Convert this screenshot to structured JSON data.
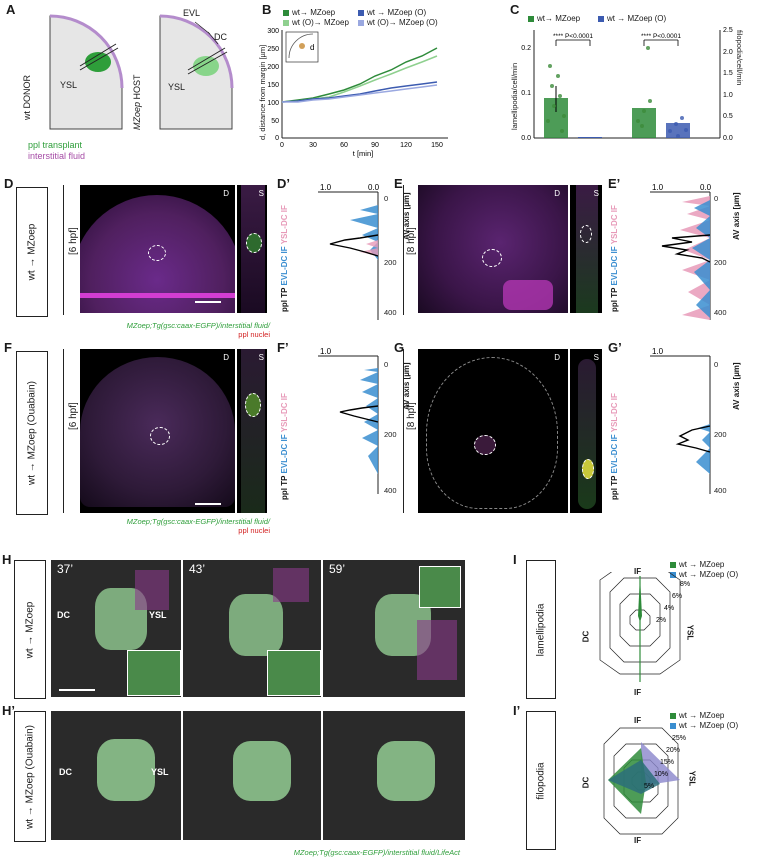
{
  "panels": {
    "A": "A",
    "B": "B",
    "C": "C",
    "D": "D",
    "D2": "D’",
    "E": "E",
    "E2": "E’",
    "F": "F",
    "F2": "F’",
    "G": "G",
    "G2": "G’",
    "H": "H",
    "H2": "H’",
    "I": "I",
    "I2": "I’"
  },
  "panelA": {
    "donor": {
      "prefix": "wt",
      "label": "DONOR"
    },
    "host": {
      "prefix": "MZoep",
      "label": "HOST"
    },
    "ysl": "YSL",
    "evl": "EVL",
    "dc": "DC",
    "legend_transplant": "ppl transplant",
    "legend_fluid": "interstitial fluid",
    "colors": {
      "transplant": "#2e9e3a",
      "fluid": "#b48ccc"
    }
  },
  "panelB": {
    "legend": [
      "wt→ MZoep",
      "wt → MZoep (O)",
      "wt (O)→ MZoep",
      "wt (O)→ MZoep (O)"
    ],
    "ylabel": "d, distance from margin [µm]",
    "xlabel": "t [min]",
    "inset_label": "d",
    "xticks": [
      "0",
      "30",
      "60",
      "90",
      "120",
      "150"
    ],
    "yticks": [
      "0",
      "50",
      "100",
      "150",
      "200",
      "250",
      "300"
    ]
  },
  "panelC": {
    "legend": [
      "wt→ MZoep",
      "wt → MZoep (O)"
    ],
    "ylabel_left": "lamellipodia/cell/min",
    "ylabel_right": "filopodia/cell/min",
    "yticks_left": [
      "0.0",
      "0.1",
      "0.2"
    ],
    "yticks_right": [
      "0.0",
      "0.5",
      "1.0",
      "1.5",
      "2.0",
      "2.5"
    ],
    "sig1": "**** P<0.0001",
    "sig2": "**** P<0.0001"
  },
  "rowD": {
    "condition": "wt → MZoep",
    "stage_left": "[6 hpf]",
    "stage_right": "[8 hpf]",
    "view_d": "D",
    "view_s": "S",
    "caption1": "MZoep;Tg(gsc:caax-EGFP)/interstitial fluid/",
    "caption2": "ppl nuclei"
  },
  "rowF": {
    "condition": "wt → MZoep (Ouabain)",
    "stage_left": "[6 hpf]",
    "stage_right": "[8 hpf]",
    "view_d": "D",
    "view_s": "S",
    "caption1": "MZoep;Tg(gsc:caax-EGFP)/interstitial fluid/",
    "caption2": "ppl nuclei"
  },
  "profiles": {
    "top_tick": "1.0",
    "zero": "0.0",
    "av_axis": "AV axis [µm]",
    "yticks": [
      "0",
      "200",
      "400"
    ],
    "side_label_a": "ppl TP",
    "side_label_b": "EVL-DC IF",
    "side_label_c": "YSL-DC IF"
  },
  "rowH": {
    "condition": "wt → MZoep",
    "times": [
      "37’",
      "43’",
      "59’"
    ],
    "dc": "DC",
    "ysl": "YSL"
  },
  "rowH2": {
    "condition": "wt → MZoep (Ouabain)",
    "dc": "DC",
    "ysl": "YSL",
    "caption": "MZoep;Tg(gsc:caax-EGFP)/interstitial fluid/LifeAct"
  },
  "panelI": {
    "title": "lamellipodia",
    "legend": [
      "wt → MZoep",
      "wt → MZoep (O)"
    ],
    "axes": {
      "top": "IF",
      "bottom": "IF",
      "left": "DC",
      "right": "YSL"
    },
    "rings": [
      "2%",
      "4%",
      "6%",
      "8%"
    ]
  },
  "panelI2": {
    "title": "filopodia",
    "legend": [
      "wt → MZoep",
      "wt → MZoep (O)"
    ],
    "axes": {
      "top": "IF",
      "bottom": "IF",
      "left": "DC",
      "right": "YSL"
    },
    "rings": [
      "5%",
      "10%",
      "15%",
      "20%",
      "25%"
    ]
  },
  "colors": {
    "green": "#2e8b3a",
    "blue": "#3c5bb0",
    "light_green": "#8fd08f",
    "light_blue": "#9aa8e0",
    "fluid": "#d14fd1",
    "pink": "#e79ab8",
    "profile_blue": "#3a8ed0"
  }
}
